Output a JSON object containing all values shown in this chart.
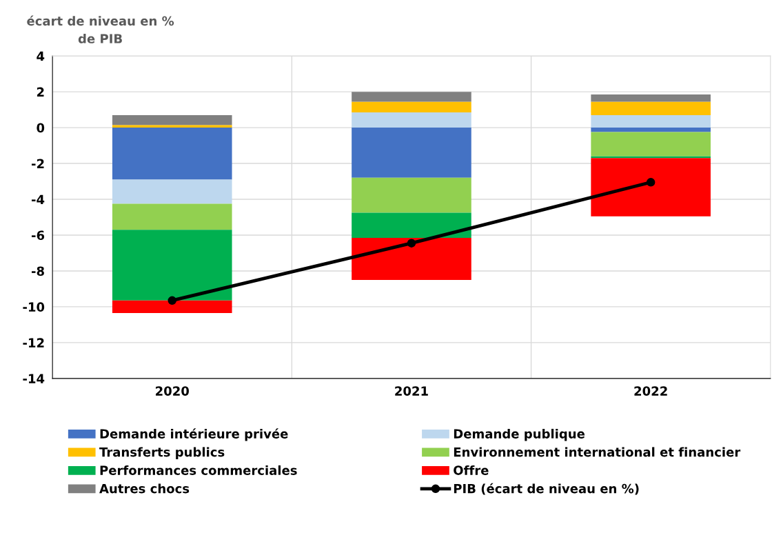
{
  "chart_data": {
    "type": "bar",
    "stacked": true,
    "ylabel": "écart de niveau en %\nde PIB",
    "categories": [
      "2020",
      "2021",
      "2022"
    ],
    "series": [
      {
        "name": "Demande intérieure privée",
        "color": "#4472c4",
        "values": [
          -2.9,
          -2.8,
          -0.25
        ]
      },
      {
        "name": "Demande publique",
        "color": "#bdd7ee",
        "values": [
          -1.35,
          0.85,
          0.7
        ]
      },
      {
        "name": "Transferts publics",
        "color": "#ffc000",
        "values": [
          0.15,
          0.6,
          0.75
        ]
      },
      {
        "name": "Environnement international et financier",
        "color": "#92d050",
        "values": [
          -1.45,
          -1.95,
          -1.35
        ]
      },
      {
        "name": "Performances commerciales",
        "color": "#00b050",
        "values": [
          -3.95,
          -1.4,
          -0.1
        ]
      },
      {
        "name": "Offre",
        "color": "#ff0000",
        "values": [
          -0.7,
          -2.35,
          -3.25
        ]
      },
      {
        "name": "Autres chocs",
        "color": "#808080",
        "values": [
          0.55,
          0.55,
          0.4
        ]
      },
      {
        "name": "PIB (écart de niveau en %)",
        "color": "#000000",
        "type": "line",
        "marker": "circle",
        "values": [
          -9.65,
          -6.45,
          -3.05
        ]
      }
    ],
    "ylim": [
      -14,
      4
    ],
    "yticks": [
      -14,
      -12,
      -10,
      -8,
      -6,
      -4,
      -2,
      0,
      2,
      4
    ],
    "grid": true,
    "legend": "bottom"
  }
}
